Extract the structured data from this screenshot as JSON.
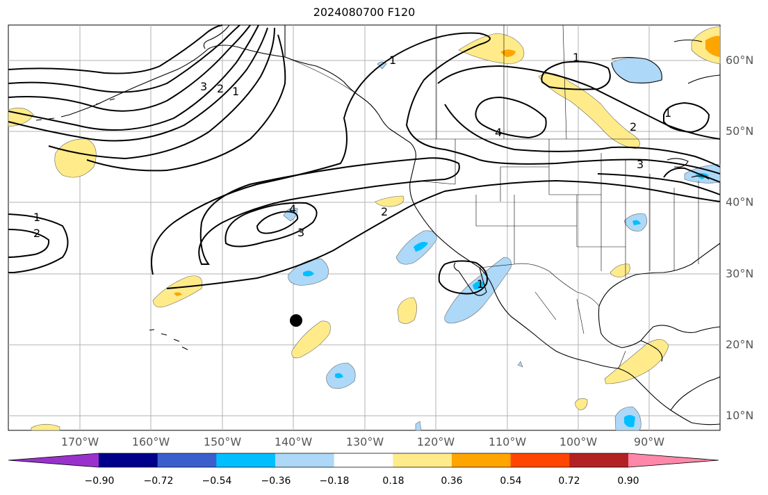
{
  "title": "2024080700 F120",
  "lon_labels": [
    "170°W",
    "160°W",
    "150°W",
    "140°W",
    "130°W",
    "120°W",
    "110°W",
    "100°W",
    "90°W"
  ],
  "lat_labels": [
    "60°N",
    "50°N",
    "40°N",
    "30°N",
    "20°N",
    "10°N"
  ],
  "contour_labels": [
    "1",
    "2",
    "3",
    "4"
  ],
  "colorbar": {
    "ticks": [
      "−0.90",
      "−0.72",
      "−0.54",
      "−0.36",
      "−0.18",
      "0.18",
      "0.36",
      "0.54",
      "0.72",
      "0.90"
    ],
    "colors": [
      "#9932cc",
      "#00008b",
      "#3a5fcd",
      "#00bfff",
      "#add8f7",
      "#ffffff",
      "#ffeb8a",
      "#ffa500",
      "#ff4500",
      "#b22222",
      "#ff88aa"
    ]
  },
  "colors": {
    "land_outline": "#000000",
    "contour": "#000000",
    "grid": "#b0b0b0",
    "positive_fill": "#ffeb8a",
    "negative_fill": "#add8f7",
    "negative_core": "#00bfff",
    "positive_core": "#ffa500"
  }
}
